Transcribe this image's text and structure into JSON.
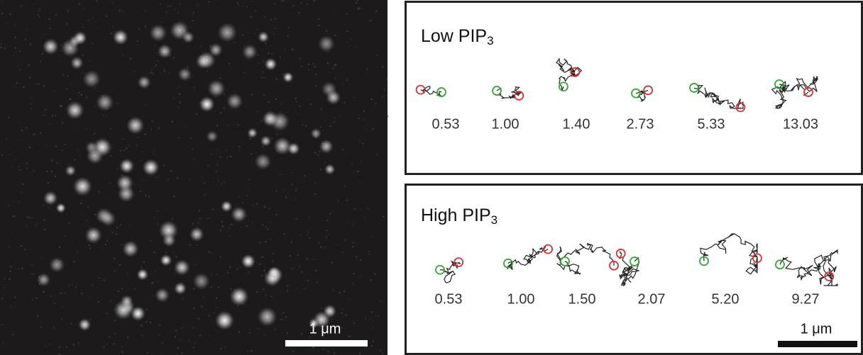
{
  "image_panel": {
    "scale_bar_label": "1 μm"
  },
  "low_panel": {
    "title": {
      "text": "Low PIP",
      "subscript": "3"
    },
    "trajectory_labels": [
      "0.53",
      "1.00",
      "1.40",
      "2.73",
      "5.33",
      "13.03"
    ]
  },
  "high_panel": {
    "title": {
      "text": "High PIP",
      "subscript": "3"
    },
    "trajectory_labels": [
      "0.53",
      "1.00",
      "1.50",
      "2.07",
      "5.20",
      "9.27"
    ],
    "scale_bar_label": "1 μm"
  }
}
